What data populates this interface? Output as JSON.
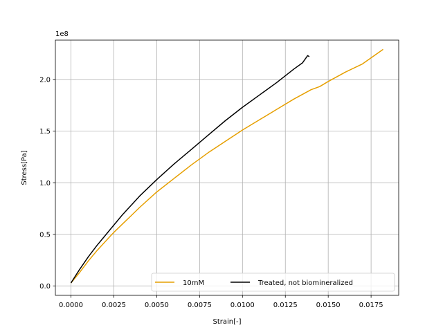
{
  "chart_data": {
    "type": "line",
    "xlabel": "Strain[-]",
    "ylabel": "Stress[Pa]",
    "y_offset_label": "1e8",
    "xlim": [
      -0.00091,
      0.01911
    ],
    "ylim": [
      -0.09,
      2.38
    ],
    "x_ticks": [
      0.0,
      0.0025,
      0.005,
      0.0075,
      0.01,
      0.0125,
      0.015,
      0.0175
    ],
    "x_tick_labels": [
      "0.0000",
      "0.0025",
      "0.0050",
      "0.0075",
      "0.0100",
      "0.0125",
      "0.0150",
      "0.0175"
    ],
    "y_ticks": [
      0.0,
      0.5,
      1.0,
      1.5,
      2.0
    ],
    "y_tick_labels": [
      "0.0",
      "0.5",
      "1.0",
      "1.5",
      "2.0"
    ],
    "grid": true,
    "legend": {
      "placement": "lower-right",
      "ncol": 2
    },
    "series": [
      {
        "name": "10mM",
        "color": "#e69f00",
        "points": [
          [
            0.0,
            0.03
          ],
          [
            0.0005,
            0.13
          ],
          [
            0.001,
            0.24
          ],
          [
            0.0015,
            0.34
          ],
          [
            0.002,
            0.43
          ],
          [
            0.0025,
            0.52
          ],
          [
            0.003,
            0.6
          ],
          [
            0.0035,
            0.68
          ],
          [
            0.004,
            0.76
          ],
          [
            0.005,
            0.91
          ],
          [
            0.006,
            1.04
          ],
          [
            0.007,
            1.17
          ],
          [
            0.008,
            1.29
          ],
          [
            0.009,
            1.4
          ],
          [
            0.01,
            1.51
          ],
          [
            0.011,
            1.61
          ],
          [
            0.012,
            1.71
          ],
          [
            0.013,
            1.81
          ],
          [
            0.014,
            1.9
          ],
          [
            0.0145,
            1.93
          ],
          [
            0.015,
            1.98
          ],
          [
            0.016,
            2.07
          ],
          [
            0.017,
            2.15
          ],
          [
            0.0182,
            2.29
          ]
        ]
      },
      {
        "name": "Treated, not biomineralized",
        "color": "#000000",
        "points": [
          [
            0.0,
            0.03
          ],
          [
            0.0005,
            0.16
          ],
          [
            0.001,
            0.28
          ],
          [
            0.0015,
            0.39
          ],
          [
            0.002,
            0.49
          ],
          [
            0.0025,
            0.59
          ],
          [
            0.003,
            0.69
          ],
          [
            0.004,
            0.87
          ],
          [
            0.005,
            1.03
          ],
          [
            0.006,
            1.18
          ],
          [
            0.007,
            1.32
          ],
          [
            0.008,
            1.46
          ],
          [
            0.009,
            1.6
          ],
          [
            0.01,
            1.73
          ],
          [
            0.011,
            1.85
          ],
          [
            0.012,
            1.97
          ],
          [
            0.013,
            2.1
          ],
          [
            0.0135,
            2.16
          ],
          [
            0.0138,
            2.23
          ],
          [
            0.0139,
            2.22
          ]
        ]
      }
    ]
  }
}
